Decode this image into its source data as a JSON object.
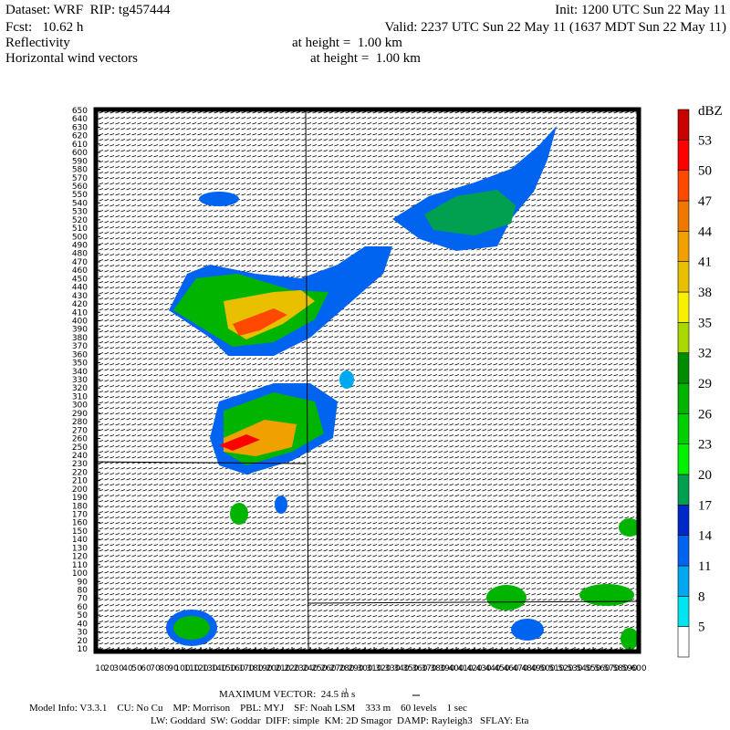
{
  "header": {
    "dataset": "Dataset: WRF  RIP: tg457444",
    "init": "Init: 1200 UTC Sun 22 May 11",
    "fcst": "Fcst:   10.62 h",
    "valid": "Valid: 2237 UTC Sun 22 May 11 (1637 MDT Sun 22 May 11)",
    "field1": "Reflectivity",
    "field1_height": "at height =  1.00 km",
    "field2": "Horizontal wind vectors",
    "field2_height": "at height =  1.00 km"
  },
  "axes": {
    "yticks": [
      10,
      20,
      30,
      40,
      50,
      60,
      70,
      80,
      90,
      100,
      110,
      120,
      130,
      140,
      150,
      160,
      170,
      180,
      190,
      200,
      210,
      220,
      230,
      240,
      250,
      260,
      270,
      280,
      290,
      300,
      310,
      320,
      330,
      340,
      350,
      360,
      370,
      380,
      390,
      400,
      410,
      420,
      430,
      440,
      450,
      460,
      470,
      480,
      490,
      500,
      510,
      520,
      530,
      540,
      550,
      560,
      570,
      580,
      590,
      600,
      610,
      620,
      630,
      640,
      650
    ],
    "xticks": [
      10,
      20,
      30,
      40,
      50,
      60,
      70,
      80,
      90,
      100,
      110,
      120,
      130,
      140,
      150,
      160,
      170,
      180,
      190,
      200,
      210,
      220,
      230,
      240,
      250,
      260,
      270,
      280,
      290,
      300,
      310,
      320,
      330,
      340,
      350,
      360,
      370,
      380,
      390,
      400,
      410,
      420,
      430,
      440,
      450,
      460,
      470,
      480,
      490,
      500,
      510,
      520,
      530,
      540,
      550,
      560,
      570,
      580,
      590,
      600
    ]
  },
  "colorbar": {
    "unit": "dBZ",
    "labels": [
      5,
      8,
      11,
      14,
      17,
      20,
      23,
      26,
      29,
      32,
      35,
      38,
      41,
      44,
      47,
      50,
      53
    ],
    "colors": [
      "#ffffff",
      "#00e6f0",
      "#00a8f0",
      "#0064f0",
      "#0028c8",
      "#00a050",
      "#00f000",
      "#00d000",
      "#00b400",
      "#008c00",
      "#a8d800",
      "#f8f000",
      "#e8c000",
      "#f0a000",
      "#f07800",
      "#ff4800",
      "#ff0000",
      "#c80000"
    ]
  },
  "footer": {
    "max_vector": "MAXIMUM VECTOR:  24.5 m s",
    "max_vector_unit_exp": "-1",
    "model_info": "Model Info: V3.3.1    CU: No Cu    MP: Morrison    PBL: MYJ    SF: Noah LSM    333 m    60 levels    1 sec",
    "physics": "LW: Goddard  SW: Goddar  DIFF: simple  KM: 2D Smagor  DAMP: Rayleigh3   SFLAY: Eta"
  }
}
